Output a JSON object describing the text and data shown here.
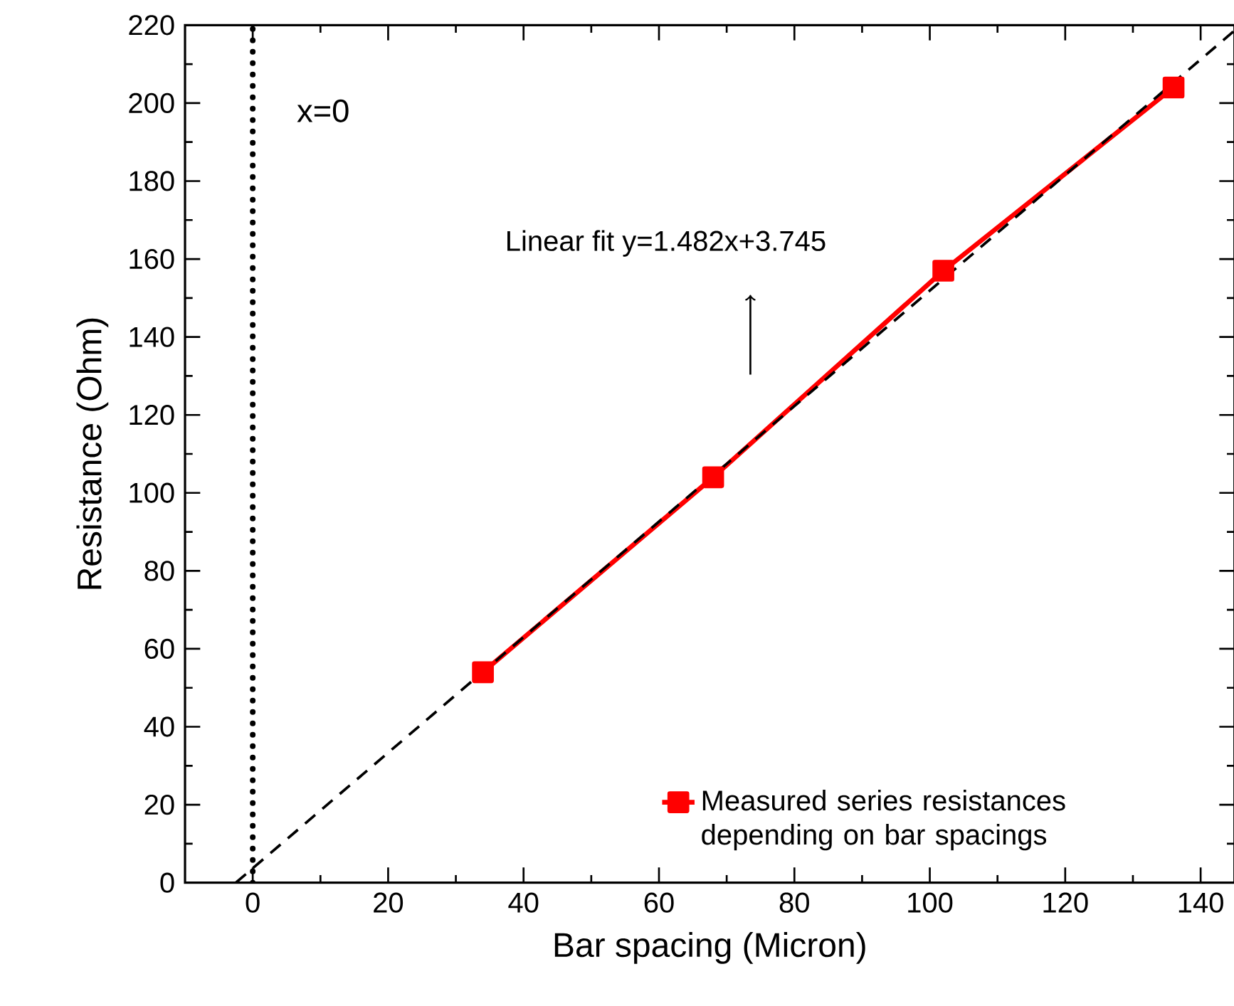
{
  "chart_data": {
    "type": "line",
    "xlabel": "Bar spacing (Micron)",
    "ylabel": "Resistance (Ohm)",
    "xlim": [
      -10,
      145
    ],
    "ylim": [
      0,
      220
    ],
    "xticks": [
      0,
      20,
      40,
      60,
      80,
      100,
      120,
      140
    ],
    "yticks": [
      0,
      20,
      40,
      60,
      80,
      100,
      120,
      140,
      160,
      180,
      200,
      220
    ],
    "series": [
      {
        "name": "Measured series resistances depending on bar spacings",
        "color": "#ff0000",
        "marker": "square",
        "line_style": "solid",
        "x": [
          34,
          68,
          102,
          136
        ],
        "values": [
          54,
          104,
          157,
          204
        ]
      },
      {
        "type": "line",
        "color": "#000000",
        "marker": "none",
        "line_style": "dashed",
        "x": [
          -2.5,
          145
        ],
        "values": [
          0,
          218.6
        ]
      }
    ],
    "ref_lines": [
      {
        "axis": "x",
        "value": 0,
        "label": "x=0",
        "color": "#000000",
        "line_style": "dotted"
      }
    ],
    "annotations": [
      "Linear fit y=1.482x+3.745"
    ],
    "legend": "bottom right",
    "grid": false
  }
}
